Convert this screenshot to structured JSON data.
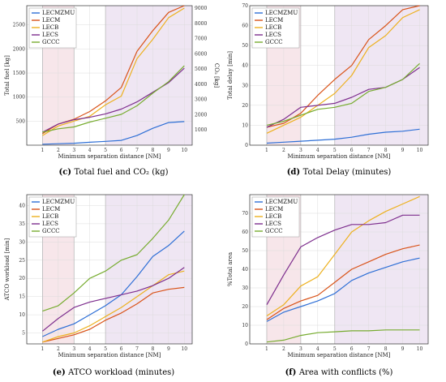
{
  "colors": {
    "LECMZMU": "#2e6fd6",
    "LECM": "#d95319",
    "LECB": "#edb120",
    "LECS": "#7e2f8e",
    "GCCC": "#77ac30",
    "zone_red": "#f7e6ea",
    "zone_purple": "#efe6f3"
  },
  "chart_data": [
    {
      "type": "line",
      "panel_letter": "(c)",
      "caption": "Total fuel and CO₂ (kg)",
      "xlabel": "Minimum separation distance [NM]",
      "ylabel": "Total fuel [kg]",
      "y2label": "CO₂ [kg]",
      "x": [
        1,
        2,
        3,
        4,
        5,
        6,
        7,
        8,
        9,
        10
      ],
      "xlim": [
        0,
        10.5
      ],
      "ylim": [
        0,
        2900
      ],
      "yticks": [
        500,
        1000,
        1500,
        2000,
        2500
      ],
      "y2lim": [
        0,
        9164
      ],
      "y2ticks": [
        1000,
        2000,
        3000,
        4000,
        5000,
        6000,
        7000,
        8000,
        9000
      ],
      "zones": [
        {
          "from": 1,
          "to": 3,
          "color": "red"
        },
        {
          "from": 5,
          "to": 10.5,
          "color": "purple"
        }
      ],
      "legend_position": "top-left",
      "series": [
        {
          "name": "LECMZMU",
          "values": [
            20,
            30,
            40,
            60,
            80,
            100,
            200,
            350,
            470,
            490
          ]
        },
        {
          "name": "LECM",
          "values": [
            240,
            440,
            540,
            700,
            920,
            1200,
            1950,
            2380,
            2760,
            2900
          ]
        },
        {
          "name": "LECB",
          "values": [
            200,
            400,
            500,
            600,
            840,
            1020,
            1800,
            2200,
            2650,
            2850
          ]
        },
        {
          "name": "LECS",
          "values": [
            270,
            440,
            530,
            580,
            650,
            750,
            900,
            1100,
            1300,
            1600
          ]
        },
        {
          "name": "GCCC",
          "values": [
            270,
            340,
            380,
            480,
            560,
            640,
            820,
            1080,
            1320,
            1650
          ]
        }
      ]
    },
    {
      "type": "line",
      "panel_letter": "(d)",
      "caption": "Total Delay (minutes)",
      "xlabel": "Minimum separation distance [NM]",
      "ylabel": "Total delay [min]",
      "x": [
        1,
        2,
        3,
        4,
        5,
        6,
        7,
        8,
        9,
        10
      ],
      "xlim": [
        0,
        10.5
      ],
      "ylim": [
        0,
        70
      ],
      "yticks": [
        0,
        10,
        20,
        30,
        40,
        50,
        60,
        70
      ],
      "zones": [
        {
          "from": 1,
          "to": 3,
          "color": "red"
        },
        {
          "from": 5,
          "to": 10.5,
          "color": "purple"
        }
      ],
      "legend_position": "top-left",
      "series": [
        {
          "name": "LECMZMU",
          "values": [
            1,
            1.5,
            2,
            2.5,
            3,
            4,
            5.5,
            6.5,
            7,
            8
          ]
        },
        {
          "name": "LECM",
          "values": [
            9,
            11,
            16,
            25,
            33,
            40,
            53,
            60,
            68,
            71
          ]
        },
        {
          "name": "LECB",
          "values": [
            6,
            10,
            14,
            20,
            26,
            35,
            49,
            55,
            64,
            68
          ]
        },
        {
          "name": "LECS",
          "values": [
            9,
            13,
            19,
            20,
            21,
            24,
            28,
            29,
            33,
            39
          ]
        },
        {
          "name": "GCCC",
          "values": [
            10,
            12,
            15,
            18,
            19,
            21,
            27,
            29,
            33,
            41
          ]
        }
      ]
    },
    {
      "type": "line",
      "panel_letter": "(e)",
      "caption": "ATCO workload (minutes)",
      "xlabel": "Minimum separation distance [NM]",
      "ylabel": "ATCO workload [min]",
      "x": [
        1,
        2,
        3,
        4,
        5,
        6,
        7,
        8,
        9,
        10
      ],
      "xlim": [
        0,
        10.5
      ],
      "ylim": [
        2,
        43
      ],
      "yticks": [
        5,
        10,
        15,
        20,
        25,
        30,
        35,
        40
      ],
      "zones": [
        {
          "from": 1,
          "to": 3,
          "color": "red"
        },
        {
          "from": 5,
          "to": 10.5,
          "color": "purple"
        }
      ],
      "legend_position": "top-left",
      "series": [
        {
          "name": "LECMZMU",
          "values": [
            4,
            6,
            7.5,
            10,
            12.5,
            15.5,
            20.5,
            26,
            29,
            33
          ]
        },
        {
          "name": "LECM",
          "values": [
            2.5,
            3.5,
            4.5,
            6,
            8.5,
            10.5,
            13,
            16,
            17,
            17.5
          ]
        },
        {
          "name": "LECB",
          "values": [
            2.5,
            4,
            5,
            7,
            9.5,
            12,
            15,
            18,
            21,
            22
          ]
        },
        {
          "name": "LECS",
          "values": [
            5.5,
            9,
            12,
            13.5,
            14.5,
            15.5,
            16.5,
            18,
            20,
            23
          ]
        },
        {
          "name": "GCCC",
          "values": [
            11,
            12.5,
            16,
            20,
            22,
            25,
            26.5,
            31,
            36,
            44
          ]
        }
      ]
    },
    {
      "type": "line",
      "panel_letter": "(f)",
      "caption": "Area with conflicts (%)",
      "xlabel": "Minimum separation distance [NM]",
      "ylabel": "%Total area",
      "x": [
        1,
        2,
        3,
        4,
        5,
        6,
        7,
        8,
        9,
        10
      ],
      "xlim": [
        0,
        10.5
      ],
      "ylim": [
        0,
        80
      ],
      "yticks": [
        0,
        10,
        20,
        30,
        40,
        50,
        60,
        70
      ],
      "zones": [
        {
          "from": 1,
          "to": 3,
          "color": "red"
        },
        {
          "from": 5,
          "to": 10.5,
          "color": "purple"
        }
      ],
      "legend_position": "top-left",
      "series": [
        {
          "name": "LECMZMU",
          "values": [
            12,
            17,
            20,
            23,
            27,
            34,
            38,
            41,
            44,
            46
          ]
        },
        {
          "name": "LECM",
          "values": [
            13,
            19,
            23,
            26,
            33,
            40,
            44,
            48,
            51,
            53
          ]
        },
        {
          "name": "LECB",
          "values": [
            15,
            21,
            31,
            36,
            48,
            60,
            66,
            71,
            75,
            79
          ]
        },
        {
          "name": "LECS",
          "values": [
            21,
            37,
            52,
            57,
            61,
            64,
            64,
            65,
            69,
            69
          ]
        },
        {
          "name": "GCCC",
          "values": [
            1,
            2,
            4.5,
            6,
            6.5,
            7,
            7,
            7.5,
            7.5,
            7.5
          ]
        }
      ]
    }
  ]
}
